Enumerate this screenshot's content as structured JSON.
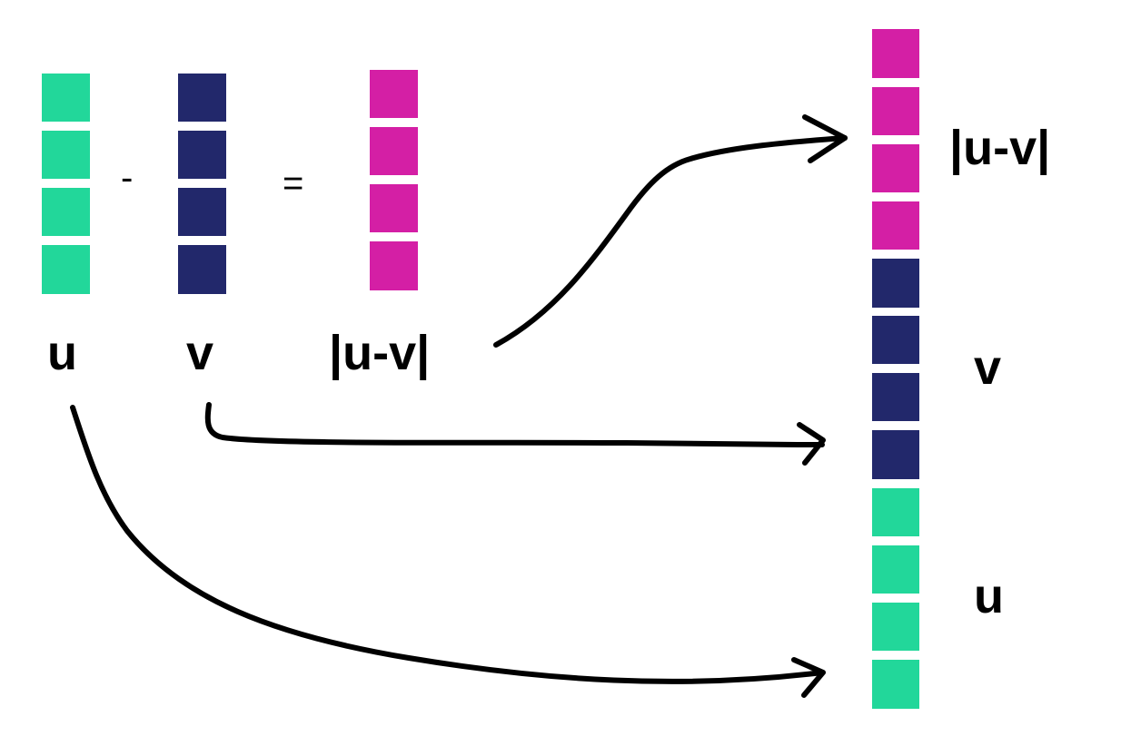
{
  "colors": {
    "u": "#22D79A",
    "v": "#22286B",
    "diff": "#D41FA5"
  },
  "inputs": {
    "u": {
      "label": "u",
      "cells": 4
    },
    "v": {
      "label": "v",
      "cells": 4
    },
    "diff": {
      "label": "|u-v|",
      "cells": 4
    }
  },
  "operators": {
    "minus": "-",
    "equals": "="
  },
  "output": {
    "segments": [
      {
        "label": "|u-v|",
        "cells": 4,
        "color_key": "diff"
      },
      {
        "label": "v",
        "cells": 4,
        "color_key": "v"
      },
      {
        "label": "u",
        "cells": 4,
        "color_key": "u"
      }
    ]
  },
  "arrows": [
    {
      "from": "|u-v|",
      "to": "|u-v|"
    },
    {
      "from": "v",
      "to": "v"
    },
    {
      "from": "u",
      "to": "u"
    }
  ]
}
